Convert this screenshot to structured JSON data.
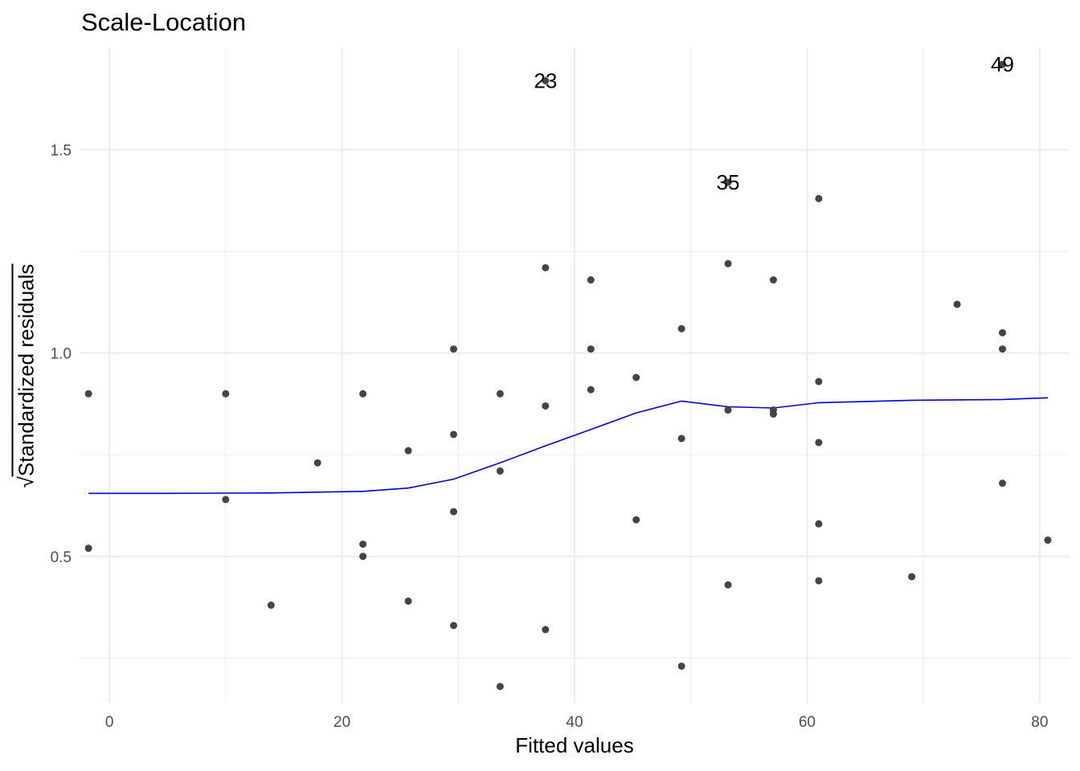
{
  "chart_data": {
    "type": "scatter",
    "title": "Scale-Location",
    "xlabel": "Fitted values",
    "ylabel": "Standardized residuals",
    "ylabel_prefix": "√",
    "xlim": [
      -2.5,
      82.5
    ],
    "ylim": [
      0.14,
      1.75
    ],
    "x_ticks": [
      0,
      20,
      40,
      60,
      80
    ],
    "x_tick_labels": [
      "0",
      "20",
      "40",
      "60",
      "80"
    ],
    "x_minor_ticks": [
      10,
      30,
      50,
      70
    ],
    "y_ticks": [
      0.5,
      1.0,
      1.5
    ],
    "y_tick_labels": [
      "0.5",
      "1.0",
      "1.5"
    ],
    "y_minor_ticks": [
      0.25,
      0.75,
      1.25
    ],
    "grid": true,
    "colors": {
      "points": "#444444",
      "smooth": "#0000cc",
      "grid": "#ebebeb",
      "ticks": "#4d4d4d"
    },
    "points": [
      {
        "x": -1.8,
        "y": 0.9
      },
      {
        "x": -1.8,
        "y": 0.52
      },
      {
        "x": 10.0,
        "y": 0.9
      },
      {
        "x": 10.0,
        "y": 0.64
      },
      {
        "x": 13.9,
        "y": 0.38
      },
      {
        "x": 17.9,
        "y": 0.73
      },
      {
        "x": 21.8,
        "y": 0.9
      },
      {
        "x": 21.8,
        "y": 0.53
      },
      {
        "x": 21.8,
        "y": 0.5
      },
      {
        "x": 25.7,
        "y": 0.76
      },
      {
        "x": 25.7,
        "y": 0.39
      },
      {
        "x": 29.6,
        "y": 1.01
      },
      {
        "x": 29.6,
        "y": 0.8
      },
      {
        "x": 29.6,
        "y": 0.61
      },
      {
        "x": 29.6,
        "y": 0.33
      },
      {
        "x": 33.6,
        "y": 0.9
      },
      {
        "x": 33.6,
        "y": 0.71
      },
      {
        "x": 33.6,
        "y": 0.18
      },
      {
        "x": 37.5,
        "y": 1.67
      },
      {
        "x": 37.5,
        "y": 1.21
      },
      {
        "x": 37.5,
        "y": 0.87
      },
      {
        "x": 37.5,
        "y": 0.32
      },
      {
        "x": 41.4,
        "y": 1.18
      },
      {
        "x": 41.4,
        "y": 1.01
      },
      {
        "x": 41.4,
        "y": 0.91
      },
      {
        "x": 45.3,
        "y": 0.94
      },
      {
        "x": 45.3,
        "y": 0.59
      },
      {
        "x": 49.2,
        "y": 1.06
      },
      {
        "x": 49.2,
        "y": 0.79
      },
      {
        "x": 49.2,
        "y": 0.23
      },
      {
        "x": 53.2,
        "y": 1.42
      },
      {
        "x": 53.2,
        "y": 1.22
      },
      {
        "x": 53.2,
        "y": 0.86
      },
      {
        "x": 53.2,
        "y": 0.43
      },
      {
        "x": 57.1,
        "y": 1.18
      },
      {
        "x": 57.1,
        "y": 0.86
      },
      {
        "x": 57.1,
        "y": 0.85
      },
      {
        "x": 61.0,
        "y": 1.38
      },
      {
        "x": 61.0,
        "y": 0.93
      },
      {
        "x": 61.0,
        "y": 0.78
      },
      {
        "x": 61.0,
        "y": 0.58
      },
      {
        "x": 61.0,
        "y": 0.44
      },
      {
        "x": 69.0,
        "y": 0.45
      },
      {
        "x": 72.9,
        "y": 1.12
      },
      {
        "x": 76.8,
        "y": 1.71
      },
      {
        "x": 76.8,
        "y": 1.05
      },
      {
        "x": 76.8,
        "y": 1.01
      },
      {
        "x": 76.8,
        "y": 0.68
      },
      {
        "x": 80.7,
        "y": 0.54
      }
    ],
    "point_labels": [
      {
        "text": "23",
        "x": 37.5,
        "y": 1.67
      },
      {
        "text": "35",
        "x": 53.2,
        "y": 1.42
      },
      {
        "text": "49",
        "x": 76.8,
        "y": 1.71
      }
    ],
    "smooth_line": [
      {
        "x": -1.8,
        "y": 0.655
      },
      {
        "x": 5.0,
        "y": 0.655
      },
      {
        "x": 13.9,
        "y": 0.656
      },
      {
        "x": 21.8,
        "y": 0.66
      },
      {
        "x": 25.7,
        "y": 0.668
      },
      {
        "x": 29.6,
        "y": 0.69
      },
      {
        "x": 33.6,
        "y": 0.73
      },
      {
        "x": 37.5,
        "y": 0.772
      },
      {
        "x": 41.4,
        "y": 0.812
      },
      {
        "x": 45.3,
        "y": 0.853
      },
      {
        "x": 49.2,
        "y": 0.882
      },
      {
        "x": 53.2,
        "y": 0.868
      },
      {
        "x": 57.1,
        "y": 0.865
      },
      {
        "x": 61.0,
        "y": 0.878
      },
      {
        "x": 69.0,
        "y": 0.884
      },
      {
        "x": 76.8,
        "y": 0.886
      },
      {
        "x": 80.7,
        "y": 0.89
      }
    ]
  }
}
